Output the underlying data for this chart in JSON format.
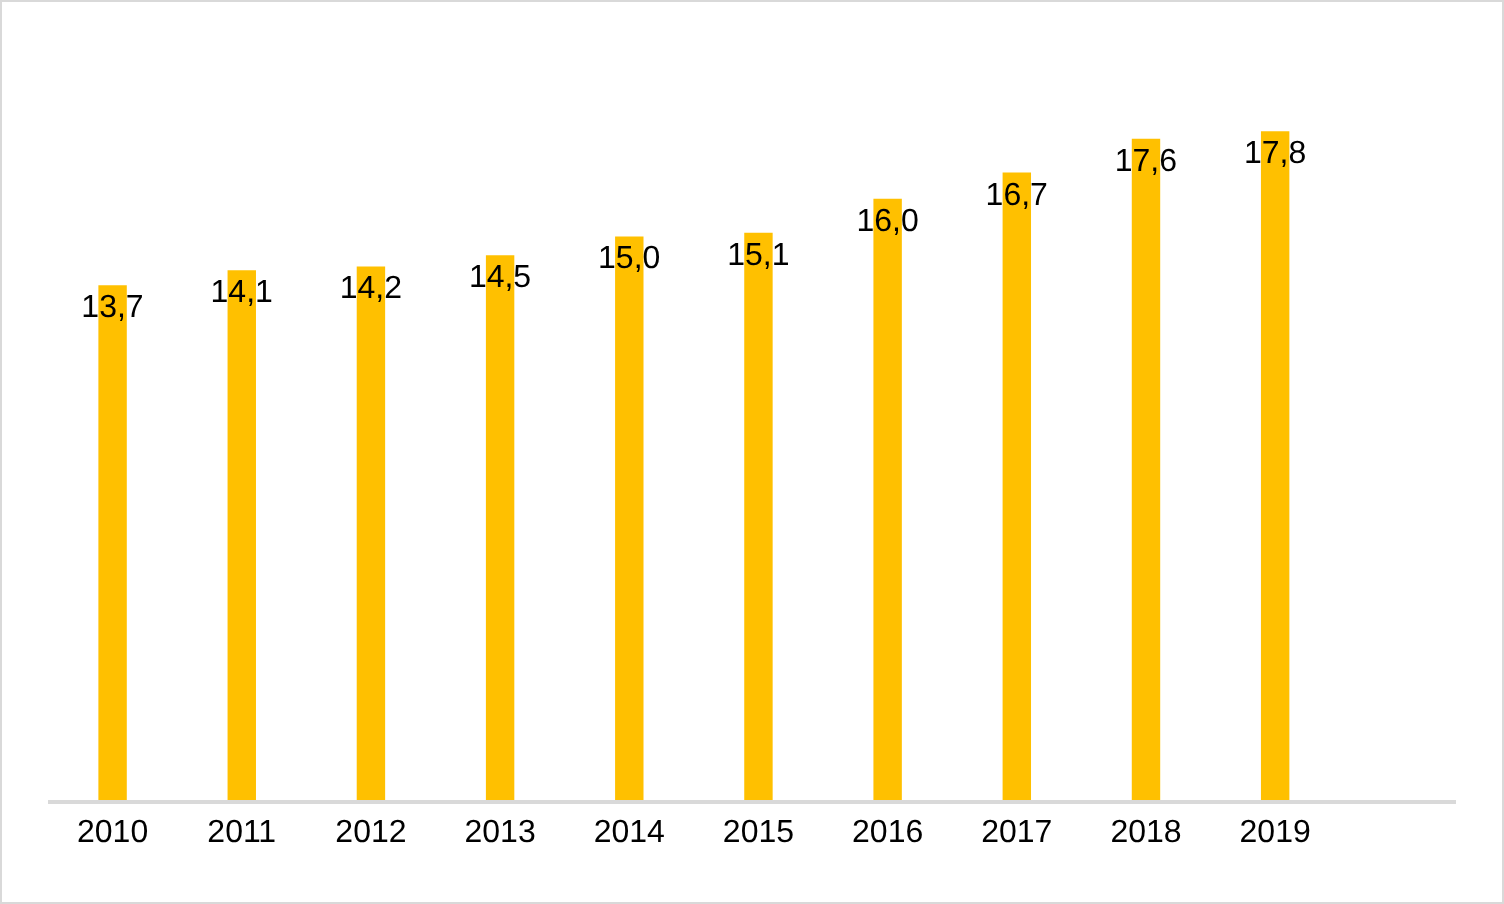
{
  "chart_data": {
    "type": "bar",
    "categories": [
      "2010",
      "2011",
      "2012",
      "2013",
      "2014",
      "2015",
      "2016",
      "2017",
      "2018",
      "2019"
    ],
    "values": [
      13.7,
      14.1,
      14.2,
      14.5,
      15.0,
      15.1,
      16.0,
      16.7,
      17.6,
      17.8
    ],
    "value_labels": [
      "13,7",
      "14,1",
      "14,2",
      "14,5",
      "15,0",
      "15,1",
      "16,0",
      "16,7",
      "17,6",
      "17,8"
    ],
    "color": "#ffc000",
    "tick_labels": "x"
  }
}
